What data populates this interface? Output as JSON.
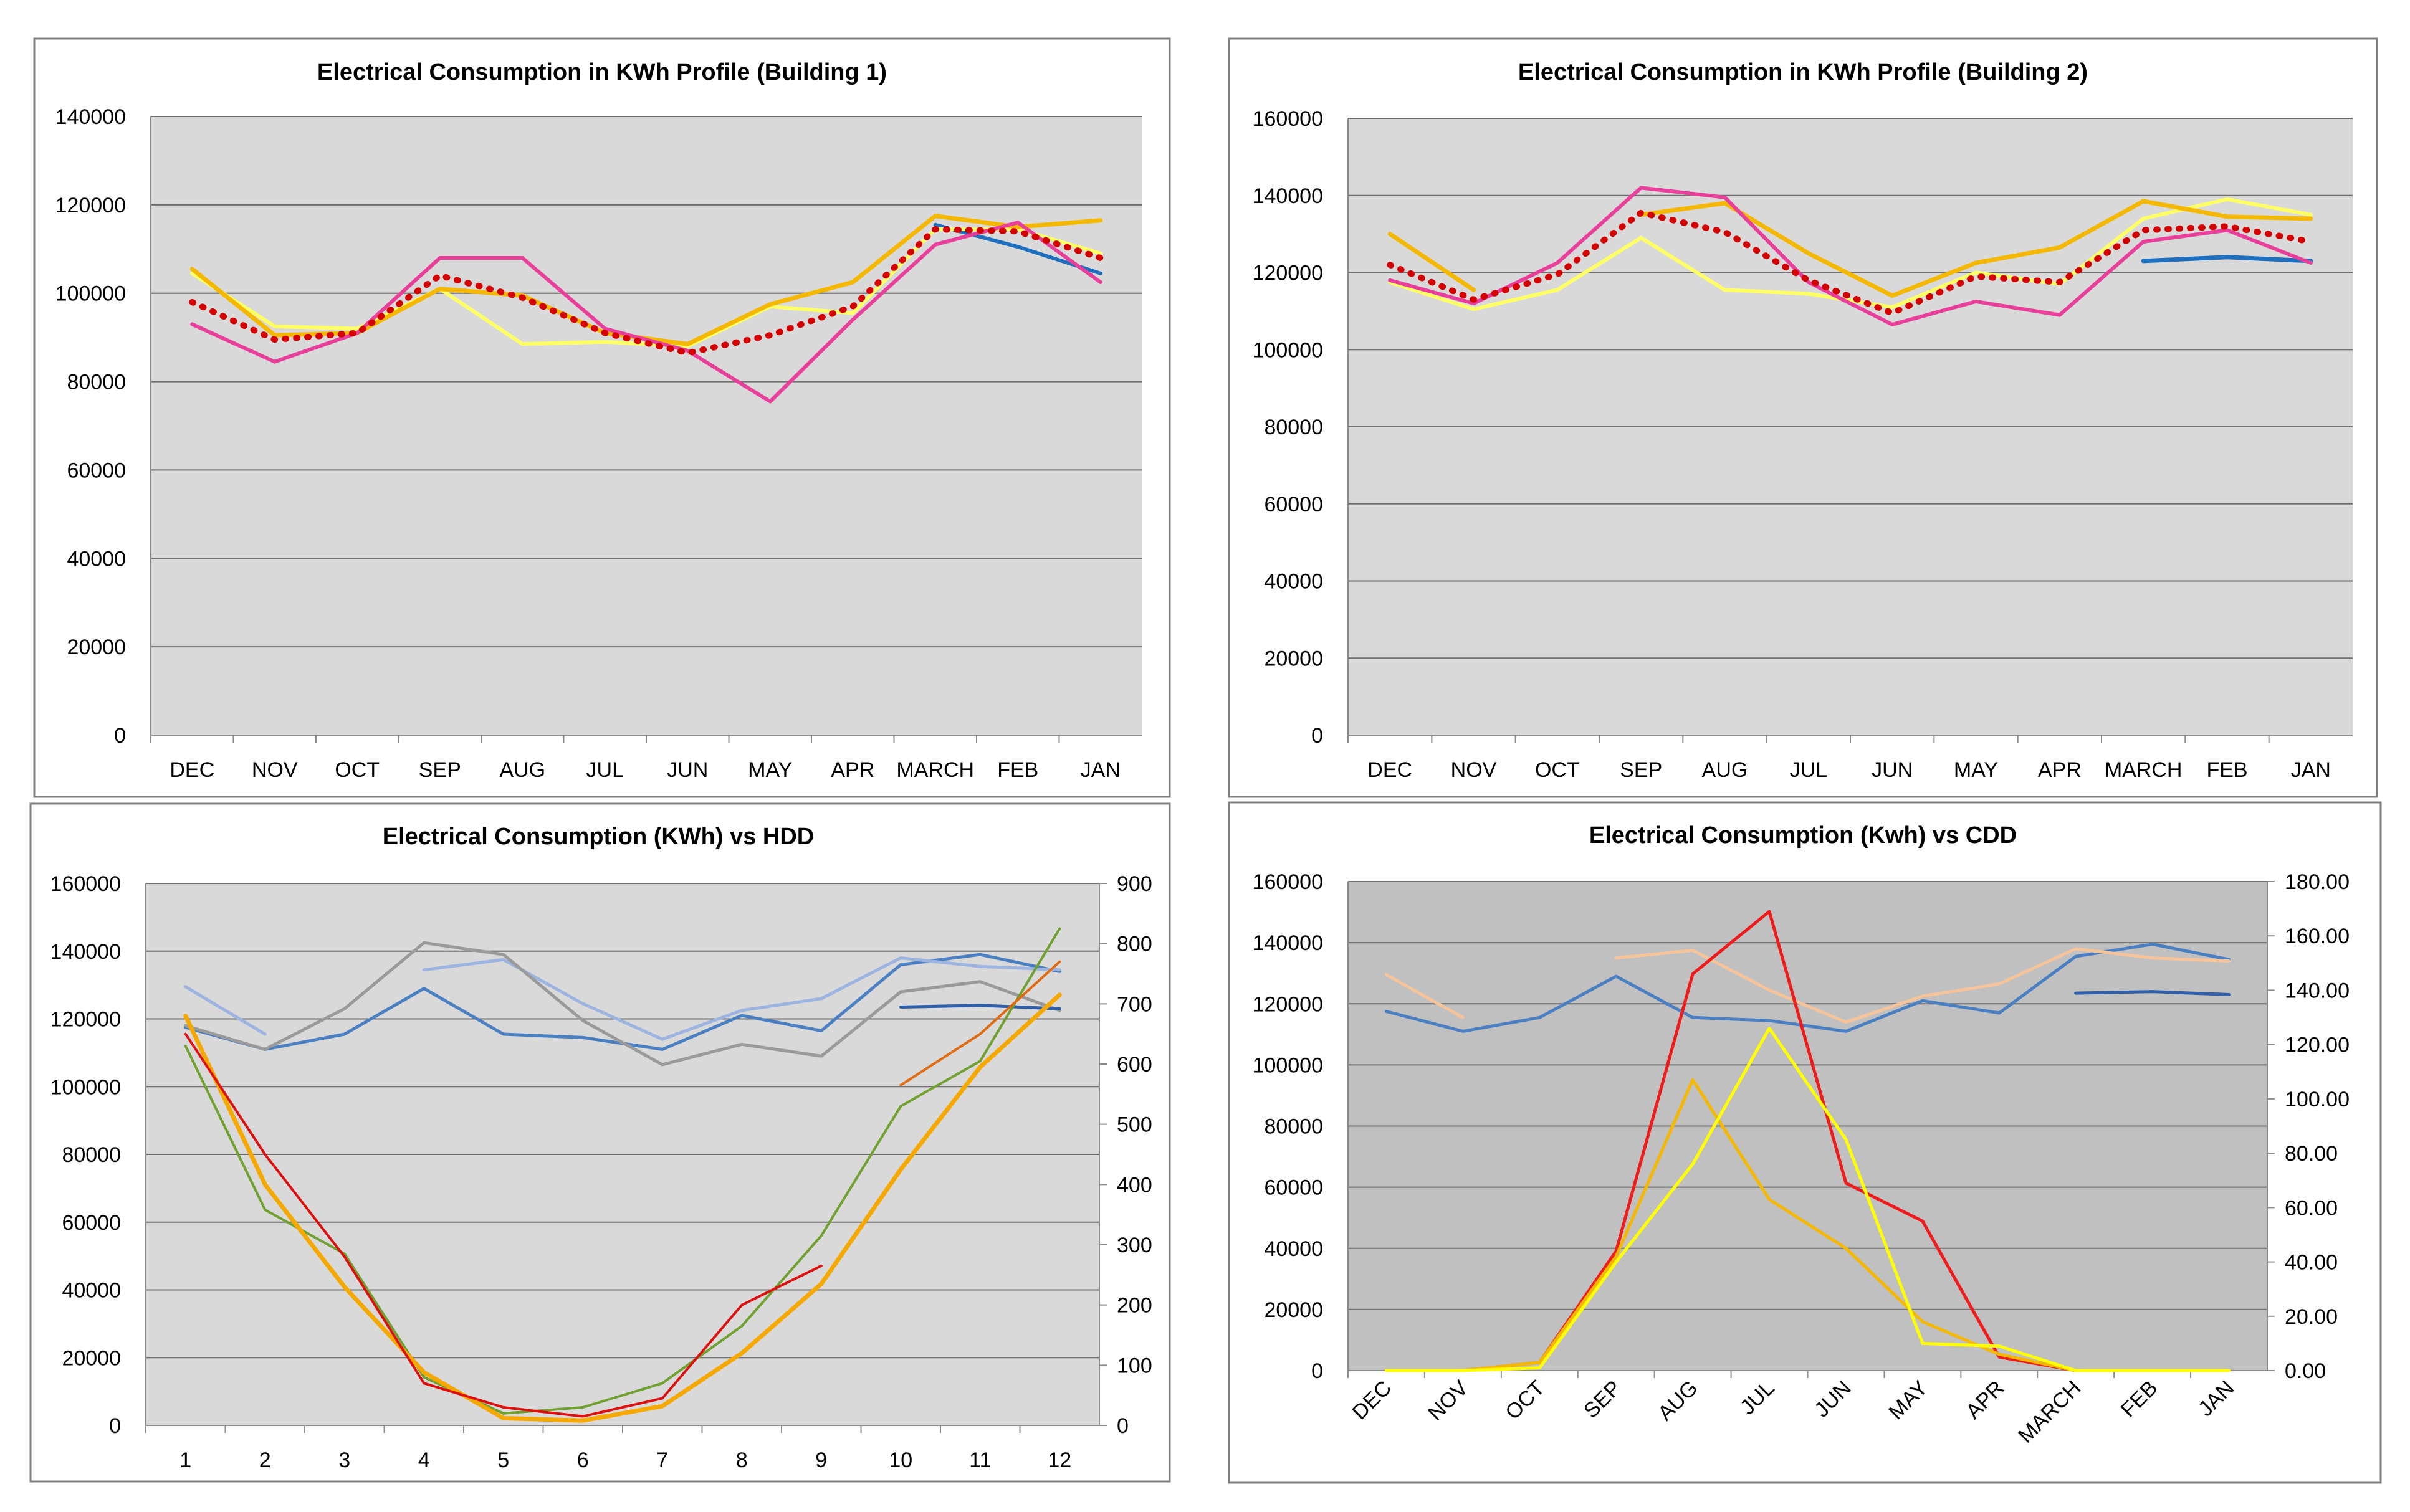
{
  "charts": [
    {
      "id": "b1",
      "title": "Electrical Consumption  in KWh Profile (Building 1)",
      "plot_bg": "#d9d9d9",
      "y_left": {
        "min": 0,
        "max": 140000,
        "step": 20000
      },
      "categories": [
        "DEC",
        "NOV",
        "OCT",
        "SEP",
        "AUG",
        "JUL",
        "JUN",
        "MAY",
        "APR",
        "MARCH",
        "FEB",
        "JAN"
      ],
      "series": [
        {
          "color": "#1f6fbf",
          "width": 6,
          "axis": "left",
          "values": [
            null,
            null,
            null,
            null,
            null,
            null,
            null,
            null,
            null,
            115500,
            110500,
            104500
          ]
        },
        {
          "color": "#ffff66",
          "width": 6,
          "axis": "left",
          "values": [
            104500,
            92500,
            92000,
            101000,
            88500,
            89000,
            88000,
            97000,
            95500,
            114500,
            114500,
            109000
          ]
        },
        {
          "color": "#f5b800",
          "width": 7,
          "axis": "left",
          "values": [
            105500,
            90500,
            91000,
            101000,
            99500,
            91000,
            88500,
            97500,
            102500,
            117500,
            115000,
            116500
          ]
        },
        {
          "color": "#e8409a",
          "width": 6,
          "axis": "left",
          "values": [
            93000,
            84500,
            91000,
            108000,
            108000,
            92000,
            87000,
            75500,
            94000,
            111000,
            116000,
            102500
          ]
        },
        {
          "color": "#d40000",
          "width": 10,
          "axis": "left",
          "dash": "2 16",
          "values": [
            98000,
            89500,
            91000,
            104000,
            99000,
            91000,
            86500,
            90500,
            97000,
            114500,
            114000,
            108000
          ]
        }
      ]
    },
    {
      "id": "b2",
      "title": "Electrical Consumption  in KWh Profile (Building 2)",
      "plot_bg": "#d9d9d9",
      "y_left": {
        "min": 0,
        "max": 160000,
        "step": 20000
      },
      "categories": [
        "DEC",
        "NOV",
        "OCT",
        "SEP",
        "AUG",
        "JUL",
        "JUN",
        "MAY",
        "APR",
        "MARCH",
        "FEB",
        "JAN"
      ],
      "series": [
        {
          "color": "#1f6fbf",
          "width": 7,
          "axis": "left",
          "values": [
            null,
            null,
            null,
            null,
            null,
            null,
            null,
            null,
            null,
            123000,
            124000,
            123000
          ]
        },
        {
          "color": "#ffff66",
          "width": 6,
          "axis": "left",
          "values": [
            117500,
            110500,
            115500,
            129000,
            115500,
            114500,
            111000,
            120000,
            117000,
            134000,
            139000,
            135000
          ]
        },
        {
          "color": "#f5b800",
          "width": 7,
          "axis": "left",
          "values": [
            130000,
            115500,
            null,
            135000,
            138000,
            125000,
            114000,
            122500,
            126500,
            138500,
            134500,
            134000
          ]
        },
        {
          "color": "#e8409a",
          "width": 6,
          "axis": "left",
          "values": [
            118000,
            112000,
            122500,
            142000,
            139500,
            117500,
            106500,
            112500,
            109000,
            128000,
            131000,
            122500
          ]
        },
        {
          "color": "#d40000",
          "width": 10,
          "axis": "left",
          "dash": "2 16",
          "values": [
            122000,
            113000,
            119500,
            135500,
            130500,
            118000,
            109500,
            119000,
            117500,
            131000,
            132000,
            128000
          ]
        }
      ]
    },
    {
      "id": "hdd",
      "title": "Electrical Consumption  (KWh) vs HDD",
      "plot_bg": "#d9d9d9",
      "y_left": {
        "min": 0,
        "max": 160000,
        "step": 20000
      },
      "y_right": {
        "min": 0,
        "max": 900,
        "step": 100,
        "decimals": 0
      },
      "categories": [
        "1",
        "2",
        "3",
        "4",
        "5",
        "6",
        "7",
        "8",
        "9",
        "10",
        "11",
        "12"
      ],
      "series": [
        {
          "color": "#4a7fc1",
          "width": 5,
          "axis": "left",
          "values": [
            117500,
            111000,
            115500,
            129000,
            115500,
            114500,
            111000,
            121000,
            116500,
            136000,
            139000,
            134000
          ]
        },
        {
          "color": "#9db3e0",
          "width": 5,
          "axis": "left",
          "values": [
            129500,
            115500,
            null,
            134500,
            137500,
            124500,
            114000,
            122500,
            126000,
            138000,
            135500,
            134500
          ]
        },
        {
          "color": "#9a9a9a",
          "width": 5,
          "axis": "left",
          "values": [
            118000,
            111000,
            123000,
            142500,
            139000,
            119500,
            106500,
            112500,
            109000,
            128000,
            131000,
            122500
          ]
        },
        {
          "color": "#2f5fa8",
          "width": 5,
          "axis": "left",
          "values": [
            null,
            null,
            null,
            null,
            null,
            null,
            null,
            null,
            null,
            123500,
            124000,
            123000
          ]
        },
        {
          "color": "#70a030",
          "width": 4,
          "axis": "right",
          "values": [
            630,
            358,
            285,
            80,
            20,
            30,
            70,
            165,
            315,
            530,
            605,
            825
          ]
        },
        {
          "color": "#e06a10",
          "width": 4,
          "axis": "right",
          "values": [
            null,
            null,
            null,
            null,
            null,
            null,
            null,
            null,
            null,
            565,
            650,
            770
          ]
        },
        {
          "color": "#f5a800",
          "width": 7,
          "axis": "right",
          "values": [
            680,
            400,
            230,
            88,
            12,
            8,
            32,
            120,
            235,
            425,
            595,
            715
          ]
        },
        {
          "color": "#dd1010",
          "width": 4,
          "axis": "right",
          "values": [
            650,
            450,
            280,
            70,
            30,
            15,
            45,
            200,
            265,
            null,
            null,
            null
          ]
        }
      ]
    },
    {
      "id": "cdd",
      "title": "Electrical Consumption  (Kwh) vs CDD",
      "plot_bg": "#c0c0c0",
      "y_left": {
        "min": 0,
        "max": 160000,
        "step": 20000
      },
      "y_right": {
        "min": 0,
        "max": 180,
        "step": 20,
        "decimals": 2
      },
      "categories": [
        "DEC",
        "NOV",
        "OCT",
        "SEP",
        "AUG",
        "JUL",
        "JUN",
        "MAY",
        "APR",
        "MARCH",
        "FEB",
        "JAN"
      ],
      "rotate_x_labels": true,
      "series": [
        {
          "color": "#4a7fc1",
          "width": 5,
          "axis": "left",
          "values": [
            117500,
            111000,
            115500,
            129000,
            115500,
            114500,
            111000,
            121000,
            117000,
            135500,
            139500,
            134500
          ]
        },
        {
          "color": "#f5c49a",
          "width": 5,
          "axis": "left",
          "values": [
            129500,
            115500,
            null,
            135000,
            137500,
            124500,
            114000,
            122500,
            126500,
            138000,
            135000,
            134000
          ]
        },
        {
          "color": "#2f5fa8",
          "width": 5,
          "axis": "left",
          "values": [
            null,
            null,
            null,
            null,
            null,
            null,
            null,
            null,
            null,
            123500,
            124000,
            123000
          ]
        },
        {
          "color": "#ee1c1c",
          "width": 5,
          "axis": "right",
          "values": [
            0,
            0,
            3,
            44,
            146,
            169,
            69,
            55,
            5,
            0,
            0,
            0
          ]
        },
        {
          "color": "#f5b800",
          "width": 5,
          "axis": "right",
          "values": [
            0,
            0,
            3,
            42,
            107,
            63,
            45,
            18,
            6,
            0,
            0,
            0
          ]
        },
        {
          "color": "#ffff00",
          "width": 5,
          "axis": "right",
          "values": [
            0,
            0,
            1,
            40,
            76,
            126,
            85,
            10,
            9,
            0,
            0,
            0
          ]
        }
      ]
    }
  ]
}
